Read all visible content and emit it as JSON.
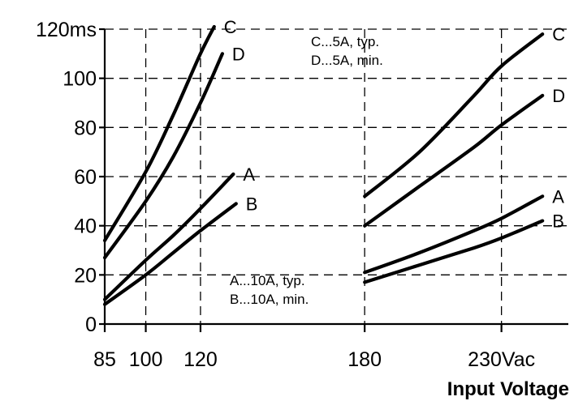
{
  "chart_data": {
    "type": "line",
    "xlabel": "Input Voltage",
    "ylabel": "",
    "xlim": [
      85,
      249
    ],
    "ylim": [
      0,
      120
    ],
    "x_ticks": [
      {
        "value": 85,
        "label": "85"
      },
      {
        "value": 100,
        "label": "100"
      },
      {
        "value": 120,
        "label": "120"
      },
      {
        "value": 180,
        "label": "180"
      },
      {
        "value": 230,
        "label": "230Vac"
      }
    ],
    "y_ticks": [
      {
        "value": 0,
        "label": "0"
      },
      {
        "value": 20,
        "label": "20"
      },
      {
        "value": 40,
        "label": "40"
      },
      {
        "value": 60,
        "label": "60"
      },
      {
        "value": 80,
        "label": "80"
      },
      {
        "value": 100,
        "label": "100"
      },
      {
        "value": 120,
        "label": "120ms"
      }
    ],
    "grid": true,
    "series": [
      {
        "name": "C",
        "segments": [
          {
            "x": [
              85,
              100,
              110,
              120,
              125
            ],
            "y": [
              34,
              62,
              85,
              110,
              121
            ]
          },
          {
            "x": [
              180,
              200,
              220,
              230,
              245
            ],
            "y": [
              52,
              70,
              93,
              105,
              118
            ]
          }
        ]
      },
      {
        "name": "D",
        "segments": [
          {
            "x": [
              85,
              100,
              110,
              120,
              128
            ],
            "y": [
              27,
              50,
              68,
              90,
              110
            ]
          },
          {
            "x": [
              180,
              200,
              220,
              230,
              245
            ],
            "y": [
              40,
              56,
              72,
              81,
              93
            ]
          }
        ]
      },
      {
        "name": "A",
        "segments": [
          {
            "x": [
              85,
              100,
              110,
              120,
              132
            ],
            "y": [
              10,
              26,
              36,
              47,
              61
            ]
          },
          {
            "x": [
              180,
              200,
              220,
              230,
              245
            ],
            "y": [
              21,
              29,
              38,
              43,
              52
            ]
          }
        ]
      },
      {
        "name": "B",
        "segments": [
          {
            "x": [
              85,
              100,
              110,
              120,
              133
            ],
            "y": [
              8,
              20,
              29,
              38,
              49
            ]
          },
          {
            "x": [
              180,
              200,
              220,
              230,
              245
            ],
            "y": [
              17,
              24,
              31,
              35,
              42
            ]
          }
        ]
      }
    ],
    "notes": [
      [
        "C...5A, typ.",
        "D...5A,  min."
      ],
      [
        "A...10A, typ.",
        "B...10A,  min."
      ]
    ]
  }
}
